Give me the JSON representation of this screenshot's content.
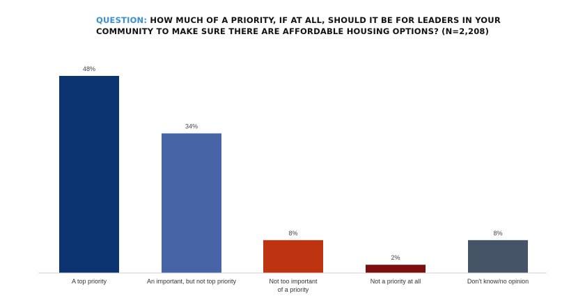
{
  "title_prefix": "QUESTION:",
  "title_text": "HOW MUCH OF A PRIORITY, IF AT ALL, SHOULD IT BE FOR LEADERS IN YOUR COMMUNITY TO MAKE SURE THERE ARE AFFORDABLE HOUSING OPTIONS? (N=2,208)",
  "chart_data": {
    "type": "bar",
    "title": "QUESTION: HOW MUCH OF A PRIORITY, IF AT ALL, SHOULD IT BE FOR LEADERS IN YOUR COMMUNITY TO MAKE SURE THERE ARE AFFORDABLE HOUSING OPTIONS? (N=2,208)",
    "categories": [
      [
        "A top priority"
      ],
      [
        "An important, but not top priority"
      ],
      [
        "Not too important",
        "of a priority"
      ],
      [
        "Not a priority at all"
      ],
      [
        "Don't know/no opinion"
      ]
    ],
    "values": [
      48,
      34,
      8,
      2,
      8
    ],
    "value_labels": [
      "48%",
      "34%",
      "8%",
      "2%",
      "8%"
    ],
    "colors": [
      "#0b3470",
      "#4664a6",
      "#bf3410",
      "#7b0f0f",
      "#465467"
    ],
    "ylim": [
      0,
      50
    ],
    "grid": false,
    "legend": "none"
  }
}
